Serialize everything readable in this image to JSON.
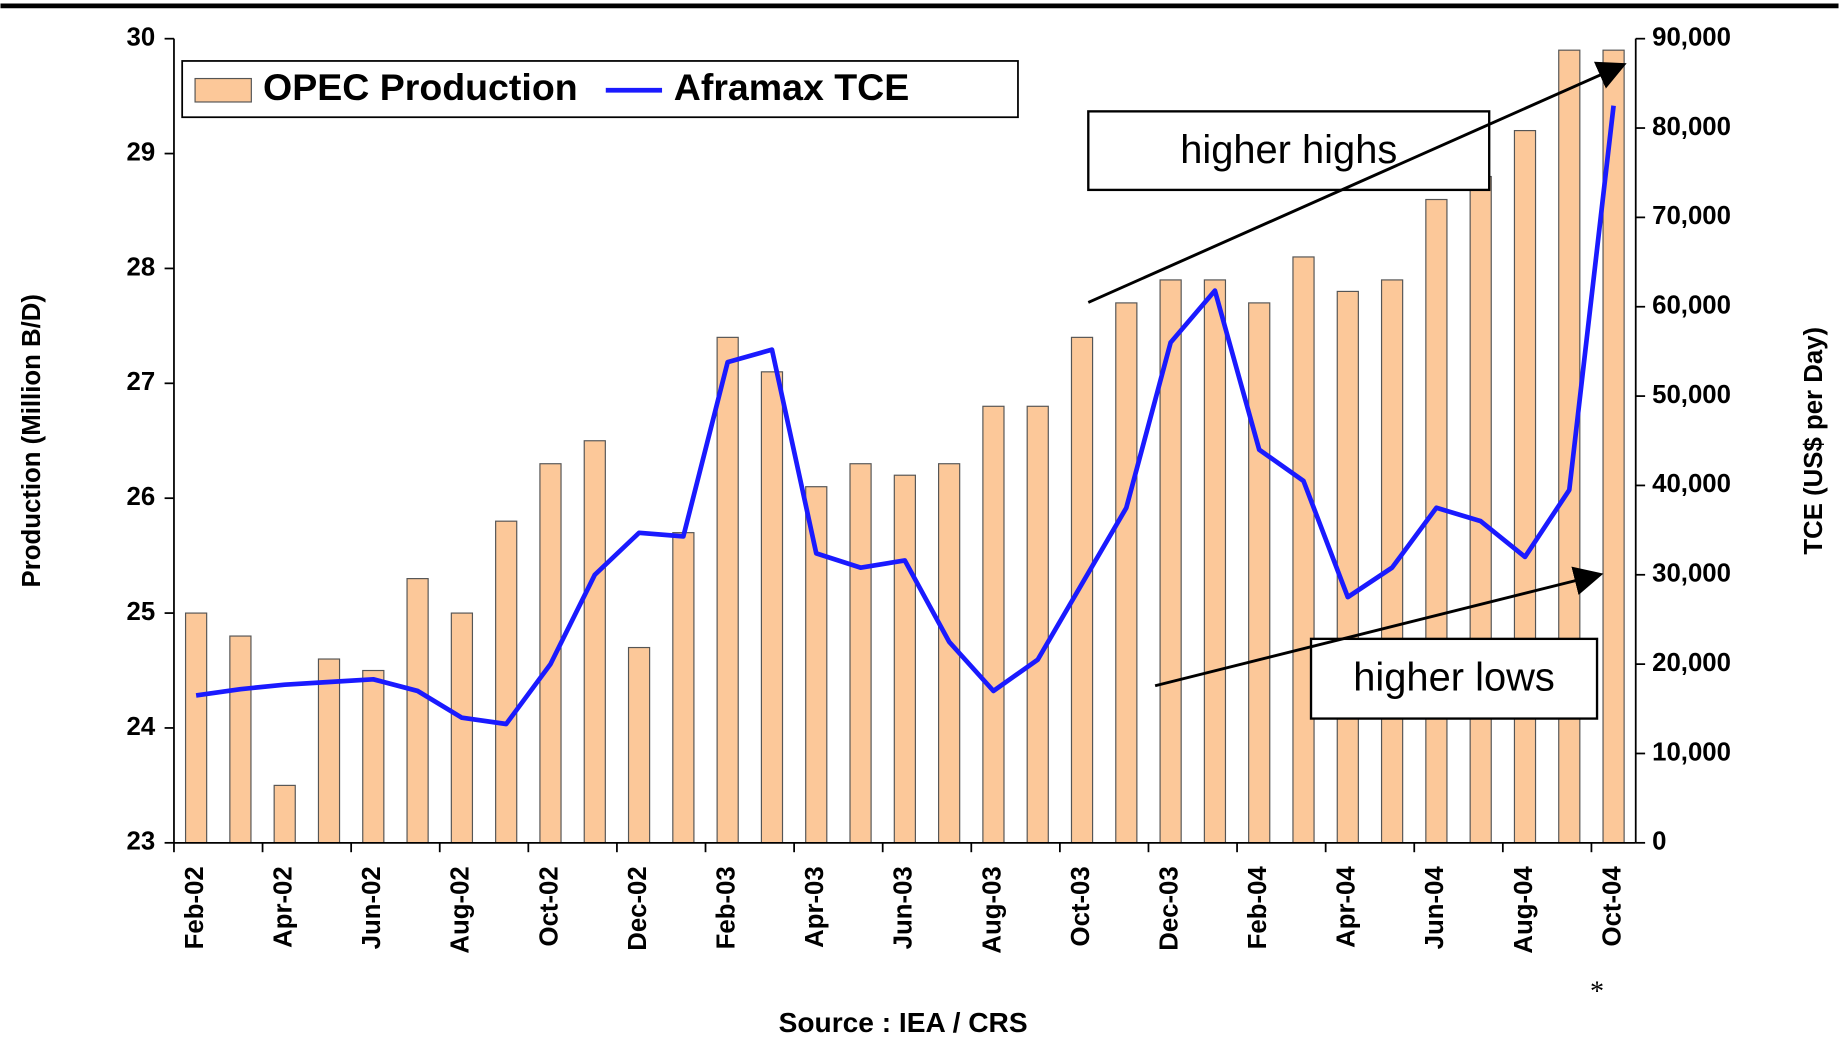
{
  "chart_data": {
    "type": "bar-line",
    "categories": [
      "Feb-02",
      null,
      "Apr-02",
      null,
      "Jun-02",
      null,
      "Aug-02",
      null,
      "Oct-02",
      null,
      "Dec-02",
      null,
      "Feb-03",
      null,
      "Apr-03",
      null,
      "Jun-03",
      null,
      "Aug-03",
      null,
      "Oct-03",
      null,
      "Dec-03",
      null,
      "Feb-04",
      null,
      "Apr-04",
      null,
      "Jun-04",
      null,
      "Aug-04",
      null,
      "Oct-04"
    ],
    "series": [
      {
        "name": "OPEC Production",
        "color": "#fcc899",
        "kind": "bar",
        "values": [
          25.0,
          24.8,
          23.5,
          24.6,
          24.5,
          25.3,
          25.0,
          25.8,
          26.3,
          26.5,
          24.7,
          25.7,
          27.4,
          27.1,
          26.1,
          26.3,
          26.2,
          26.3,
          26.8,
          26.8,
          27.4,
          27.7,
          27.9,
          27.9,
          27.7,
          28.1,
          27.8,
          27.9,
          28.6,
          28.8,
          29.2,
          29.9,
          29.9
        ]
      },
      {
        "name": "Aframax TCE",
        "color": "#1a1aff",
        "kind": "line",
        "axis": "y2",
        "values": [
          16500,
          17200,
          17700,
          18000,
          18300,
          17000,
          14000,
          13300,
          20000,
          30000,
          34700,
          34300,
          53800,
          55200,
          32400,
          30800,
          31600,
          22500,
          17000,
          20500,
          29000,
          37500,
          56000,
          61800,
          44000,
          40500,
          27500,
          30800,
          37500,
          36000,
          32000,
          39500,
          82500
        ]
      }
    ],
    "ylabel": "Production (Million B/D)",
    "y2label": "TCE (US$ per Day)",
    "ylim": [
      23,
      30
    ],
    "yticks": [
      23,
      24,
      25,
      26,
      27,
      28,
      29,
      30
    ],
    "y2lim": [
      0,
      90000
    ],
    "y2ticks": [
      0,
      {
        "value": 10000,
        "label": "10,000"
      },
      {
        "value": 20000,
        "label": "20,000"
      },
      {
        "value": 30000,
        "label": "30,000"
      },
      {
        "value": 40000,
        "label": "40,000"
      },
      {
        "value": 50000,
        "label": "50,000"
      },
      {
        "value": 60000,
        "label": "60,000"
      },
      {
        "value": 70000,
        "label": "70,000"
      },
      {
        "value": 80000,
        "label": "80,000"
      },
      {
        "value": 90000,
        "label": "90,000"
      }
    ],
    "annotations": [
      "higher highs",
      "higher lows"
    ],
    "source": "Source : IEA / CRS",
    "footnote_mark": "*",
    "legend": "top-left"
  }
}
